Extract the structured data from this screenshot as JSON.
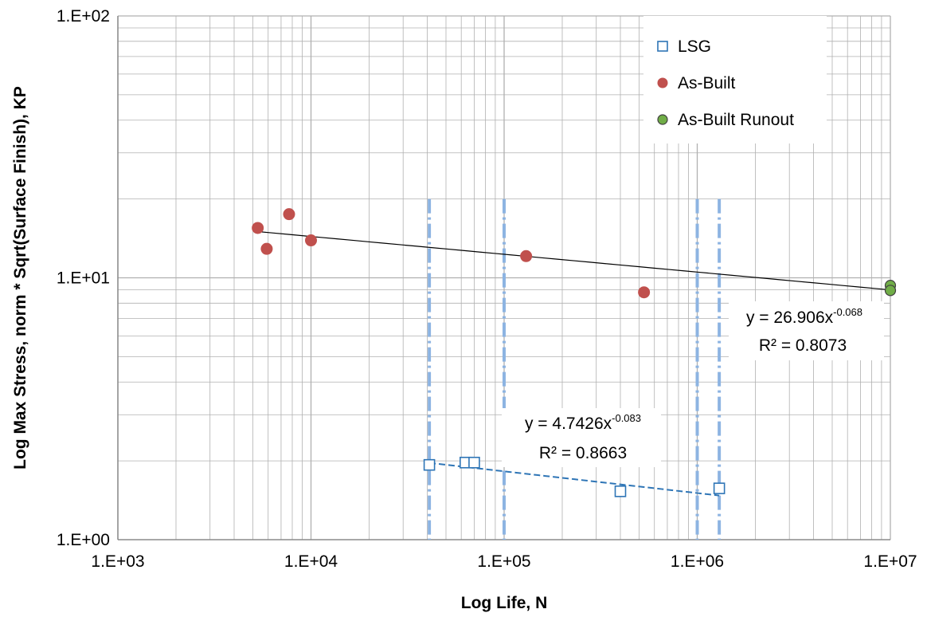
{
  "chart_data": {
    "type": "scatter",
    "title": "",
    "xlabel": "Log Life, N",
    "ylabel": "Log Max Stress, norm * Sqrt(Surface Finish), KP",
    "x_scale": "log",
    "y_scale": "log",
    "xlim": [
      1000,
      10000000
    ],
    "ylim": [
      1,
      100
    ],
    "x_ticks": [
      1000,
      10000,
      100000,
      1000000,
      10000000
    ],
    "x_tick_labels": [
      "1.E+03",
      "1.E+04",
      "1.E+05",
      "1.E+06",
      "1.E+07"
    ],
    "y_ticks": [
      1,
      10,
      100
    ],
    "y_tick_labels": [
      "1.E+00",
      "1.E+01",
      "1.E+02"
    ],
    "grid": "major and minor",
    "legend_position": "top-right",
    "colors": {
      "lsg": "#2e75b6",
      "as_built": "#c0504d",
      "runout": "#70ad47",
      "runout_edge": "#404040",
      "grid": "#b0b0b0",
      "vline": "#8db4e2",
      "trend_as_built": "#000000"
    },
    "series": [
      {
        "name": "LSG",
        "marker": "open-square",
        "points": [
          {
            "x": 41000,
            "y": 1.93
          },
          {
            "x": 63000,
            "y": 1.97
          },
          {
            "x": 70000,
            "y": 1.97
          },
          {
            "x": 400000,
            "y": 1.53
          },
          {
            "x": 1300000,
            "y": 1.57
          }
        ]
      },
      {
        "name": "As-Built",
        "marker": "filled-circle",
        "points": [
          {
            "x": 5300,
            "y": 15.5
          },
          {
            "x": 5900,
            "y": 12.9
          },
          {
            "x": 7700,
            "y": 17.5
          },
          {
            "x": 10000,
            "y": 13.9
          },
          {
            "x": 130000,
            "y": 12.1
          },
          {
            "x": 530000,
            "y": 8.8
          }
        ]
      },
      {
        "name": "As-Built Runout",
        "marker": "filled-circle",
        "points": [
          {
            "x": 10000000,
            "y": 9.35
          },
          {
            "x": 10000000,
            "y": 8.95
          }
        ]
      }
    ],
    "trendlines": [
      {
        "series": "As-Built",
        "style": "solid",
        "x_range": [
          5300,
          10000000
        ],
        "coef": 26.906,
        "exponent": -0.068,
        "equation_prefix": "y = 26.906x",
        "equation_exponent": "-0.068",
        "r2_text": "R² = 0.8073"
      },
      {
        "series": "LSG",
        "style": "dashed",
        "x_range": [
          41000,
          1300000
        ],
        "coef": 4.7426,
        "exponent": -0.083,
        "equation_prefix": "y = 4.7426x",
        "equation_exponent": "-0.083",
        "r2_text": "R² = 0.8663"
      }
    ],
    "vertical_markers": [
      {
        "x": 41000,
        "y_range": [
          1,
          20
        ]
      },
      {
        "x": 100000,
        "y_range": [
          1,
          20
        ]
      },
      {
        "x": 1000000,
        "y_range": [
          1,
          20
        ]
      },
      {
        "x": 1300000,
        "y_range": [
          1,
          20
        ]
      }
    ]
  }
}
